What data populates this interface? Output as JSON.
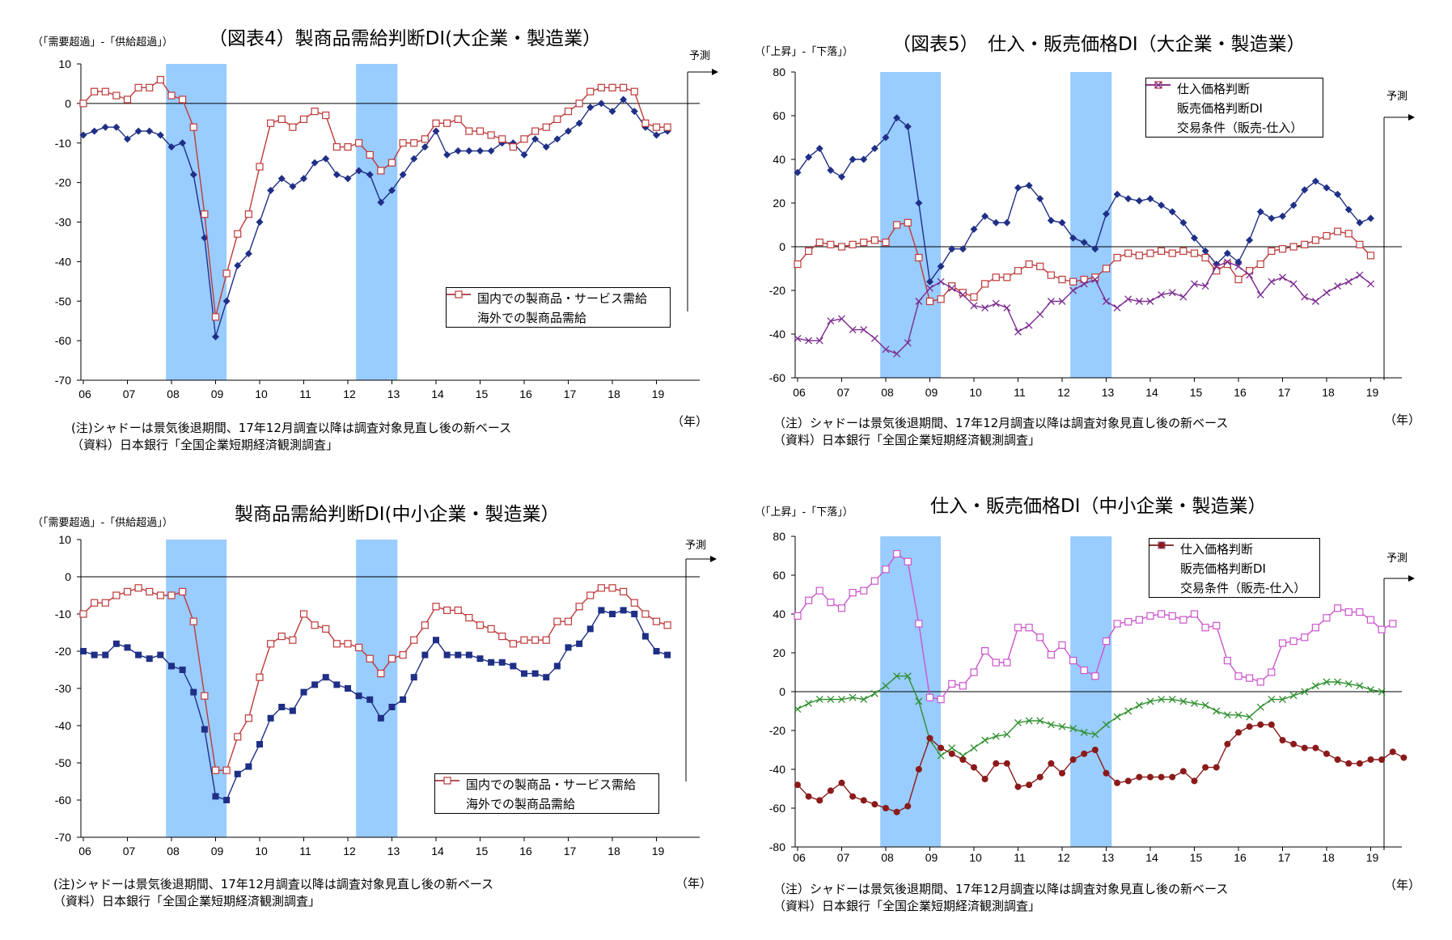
{
  "colors": {
    "shade": "#99CCFF",
    "navy": "#1F2F86",
    "red": "#BE3A3A",
    "purple": "#7B2B8F",
    "magenta": "#CC55CC",
    "green": "#2F8F2F",
    "darkred": "#8B1A1A",
    "zero": "#000000"
  },
  "panels": [
    {
      "title": "（図表4）製商品需給判断DI(大企業・製造業）",
      "unit": "（「需要超過」-「供給超過」）",
      "forecast": "予測",
      "year_label": "（年）",
      "note1": "(注)シャドーは景気後退期間、17年12月調査以降は調査対象見直し後の新ベース",
      "note2": "（資料）日本銀行「全国企業短期経済観測調査」"
    },
    {
      "title": "（図表5）　仕入・販売価格DI（大企業・製造業）",
      "unit": "（「上昇」-「下落」）",
      "forecast": "予測",
      "year_label": "（年）",
      "note1": "（注）シャドーは景気後退期間、17年12月調査以降は調査対象見直し後の新ベース",
      "note2": "（資料）日本銀行「全国企業短期経済観測調査」"
    },
    {
      "title": "製商品需給判断DI(中小企業・製造業）",
      "unit": "（「需要超過」-「供給超過」）",
      "forecast": "予測",
      "year_label": "（年）",
      "note1": "(注)シャドーは景気後退期間、17年12月調査以降は調査対象見直し後の新ベース",
      "note2": "（資料）日本銀行「全国企業短期経済観測調査」"
    },
    {
      "title": "仕入・販売価格DI（中小企業・製造業）",
      "unit": "（「上昇」-「下落」）",
      "forecast": "予測",
      "year_label": "（年）",
      "note1": "（注）シャドーは景気後退期間、17年12月調査以降は調査対象見直し後の新ベース",
      "note2": "（資料）日本銀行「全国企業短期経済観測調査」"
    }
  ],
  "chart_data": [
    {
      "type": "line",
      "x_labels": [
        "06",
        "07",
        "08",
        "09",
        "10",
        "11",
        "12",
        "13",
        "14",
        "15",
        "16",
        "17",
        "18",
        "19"
      ],
      "ylim": [
        -70,
        10
      ],
      "yticks": [
        10,
        0,
        -10,
        -20,
        -30,
        -40,
        -50,
        -60,
        -70
      ],
      "recession_shading": [
        [
          7.5,
          13.0
        ],
        [
          24.75,
          28.5
        ]
      ],
      "legend_position": "lower-right",
      "series": [
        {
          "name": "国内での製商品・サービス需給",
          "color": "navy",
          "marker": "diamond",
          "values": [
            -8,
            -7,
            -6,
            -6,
            -9,
            -7,
            -7,
            -8,
            -11,
            -10,
            -18,
            -34,
            -59,
            -50,
            -41,
            -38,
            -30,
            -22,
            -19,
            -21,
            -19,
            -15,
            -14,
            -18,
            -19,
            -17,
            -18,
            -25,
            -22,
            -18,
            -14,
            -11,
            -7,
            -13,
            -12,
            -12,
            -12,
            -12,
            -10,
            -10,
            -13,
            -9,
            -11,
            -9,
            -7,
            -5,
            -1,
            0,
            -2,
            1,
            -2,
            -6,
            -8,
            -7
          ]
        },
        {
          "name": "海外での製商品需給",
          "color": "red",
          "marker": "square",
          "values": [
            0,
            3,
            3,
            2,
            1,
            4,
            4,
            6,
            2,
            1,
            -6,
            -28,
            -54,
            -43,
            -33,
            -28,
            -16,
            -5,
            -4,
            -6,
            -4,
            -2,
            -3,
            -11,
            -11,
            -10,
            -13,
            -17,
            -15,
            -10,
            -10,
            -9,
            -5,
            -5,
            -4,
            -7,
            -7,
            -8,
            -9,
            -11,
            -9,
            -7,
            -6,
            -4,
            -2,
            0,
            3,
            4,
            4,
            4,
            3,
            -5,
            -6,
            -6
          ]
        }
      ]
    },
    {
      "type": "line",
      "x_labels": [
        "06",
        "07",
        "08",
        "09",
        "10",
        "11",
        "12",
        "13",
        "14",
        "15",
        "16",
        "17",
        "18",
        "19"
      ],
      "ylim": [
        -60,
        80
      ],
      "yticks": [
        80,
        60,
        40,
        20,
        0,
        -20,
        -40,
        -60
      ],
      "recession_shading": [
        [
          7.5,
          13.0
        ],
        [
          24.75,
          28.5
        ]
      ],
      "legend_position": "top-right",
      "series": [
        {
          "name": "仕入価格判断",
          "color": "navy",
          "marker": "diamond",
          "values": [
            34,
            41,
            45,
            35,
            32,
            40,
            40,
            45,
            50,
            59,
            55,
            20,
            -16,
            -9,
            -1,
            -1,
            8,
            14,
            11,
            11,
            27,
            28,
            22,
            12,
            11,
            4,
            2,
            -1,
            15,
            24,
            22,
            21,
            22,
            19,
            16,
            11,
            4,
            -2,
            -8,
            -3,
            -7,
            3,
            16,
            13,
            14,
            19,
            26,
            30,
            27,
            24,
            17,
            11,
            13
          ]
        },
        {
          "name": "販売価格判断DI",
          "color": "red",
          "marker": "square",
          "values": [
            -8,
            -2,
            2,
            1,
            0,
            1,
            2,
            3,
            2,
            10,
            11,
            -5,
            -25,
            -24,
            -18,
            -21,
            -23,
            -17,
            -14,
            -14,
            -11,
            -8,
            -9,
            -13,
            -15,
            -16,
            -15,
            -14,
            -10,
            -5,
            -3,
            -4,
            -3,
            -2,
            -3,
            -2,
            -3,
            -5,
            -11,
            -8,
            -15,
            -11,
            -8,
            -2,
            -1,
            0,
            1,
            3,
            5,
            7,
            6,
            1,
            -4
          ]
        },
        {
          "name": "交易条件（販売-仕入）",
          "color": "purple",
          "marker": "x",
          "values": [
            -42,
            -43,
            -43,
            -34,
            -33,
            -38,
            -38,
            -42,
            -47,
            -49,
            -44,
            -25,
            -19,
            -16,
            -19,
            -22,
            -27,
            -28,
            -26,
            -28,
            -39,
            -36,
            -31,
            -25,
            -25,
            -20,
            -17,
            -15,
            -25,
            -28,
            -24,
            -25,
            -25,
            -22,
            -21,
            -23,
            -17,
            -18,
            -9,
            -7,
            -9,
            -13,
            -22,
            -16,
            -14,
            -17,
            -23,
            -25,
            -21,
            -18,
            -16,
            -13,
            -17
          ]
        }
      ]
    },
    {
      "type": "line",
      "x_labels": [
        "06",
        "07",
        "08",
        "09",
        "10",
        "11",
        "12",
        "13",
        "14",
        "15",
        "16",
        "17",
        "18",
        "19"
      ],
      "ylim": [
        -70,
        10
      ],
      "yticks": [
        10,
        0,
        -10,
        -20,
        -30,
        -40,
        -50,
        -60,
        -70
      ],
      "recession_shading": [
        [
          7.5,
          13.0
        ],
        [
          24.75,
          28.5
        ]
      ],
      "legend_position": "lower-right",
      "series": [
        {
          "name": "国内での製商品・サービス需給",
          "color": "navy",
          "marker": "square",
          "values": [
            -20,
            -21,
            -21,
            -18,
            -19,
            -21,
            -22,
            -21,
            -24,
            -25,
            -31,
            -41,
            -59,
            -60,
            -53,
            -51,
            -45,
            -38,
            -35,
            -36,
            -31,
            -29,
            -27,
            -29,
            -30,
            -32,
            -33,
            -38,
            -35,
            -33,
            -27,
            -21,
            -17,
            -21,
            -21,
            -21,
            -22,
            -23,
            -23,
            -24,
            -26,
            -26,
            -27,
            -24,
            -19,
            -18,
            -14,
            -9,
            -10,
            -9,
            -10,
            -16,
            -20,
            -21
          ]
        },
        {
          "name": "海外での製商品需給",
          "color": "red",
          "marker": "square",
          "values": [
            -10,
            -7,
            -7,
            -5,
            -4,
            -3,
            -4,
            -5,
            -5,
            -4,
            -12,
            -32,
            -52,
            -52,
            -43,
            -38,
            -27,
            -18,
            -16,
            -17,
            -10,
            -13,
            -14,
            -18,
            -18,
            -19,
            -22,
            -26,
            -22,
            -21,
            -17,
            -13,
            -8,
            -9,
            -9,
            -11,
            -13,
            -14,
            -16,
            -18,
            -17,
            -17,
            -17,
            -12,
            -12,
            -8,
            -5,
            -3,
            -3,
            -4,
            -7,
            -10,
            -12,
            -13
          ]
        }
      ]
    },
    {
      "type": "line",
      "x_labels": [
        "06",
        "07",
        "08",
        "09",
        "10",
        "11",
        "12",
        "13",
        "14",
        "15",
        "16",
        "17",
        "18",
        "19"
      ],
      "ylim": [
        -80,
        80
      ],
      "yticks": [
        80,
        60,
        40,
        20,
        0,
        -20,
        -40,
        -60,
        -80
      ],
      "recession_shading": [
        [
          7.5,
          13.0
        ],
        [
          24.75,
          28.5
        ]
      ],
      "legend_position": "top-right",
      "series": [
        {
          "name": "仕入価格判断",
          "color": "magenta",
          "marker": "square",
          "values": [
            39,
            47,
            52,
            46,
            43,
            51,
            52,
            57,
            63,
            71,
            67,
            35,
            -3,
            -4,
            4,
            3,
            10,
            21,
            15,
            15,
            33,
            33,
            28,
            19,
            24,
            16,
            11,
            8,
            26,
            35,
            36,
            37,
            39,
            40,
            39,
            37,
            40,
            33,
            34,
            16,
            8,
            7,
            5,
            10,
            25,
            26,
            28,
            33,
            38,
            43,
            41,
            41,
            37,
            32,
            35
          ]
        },
        {
          "name": "販売価格判断DI",
          "color": "green",
          "marker": "x",
          "values": [
            -9,
            -6,
            -4,
            -4,
            -4,
            -3,
            -4,
            -1,
            3,
            8,
            8,
            -5,
            -25,
            -33,
            -29,
            -33,
            -29,
            -25,
            -23,
            -22,
            -16,
            -15,
            -15,
            -17,
            -18,
            -19,
            -21,
            -22,
            -17,
            -13,
            -10,
            -7,
            -5,
            -4,
            -4,
            -5,
            -6,
            -7,
            -10,
            -12,
            -12,
            -13,
            -8,
            -4,
            -4,
            -2,
            0,
            3,
            5,
            5,
            4,
            3,
            1,
            0
          ]
        },
        {
          "name": "交易条件（販売-仕入）",
          "color": "darkred",
          "marker": "circle",
          "values": [
            -48,
            -54,
            -56,
            -51,
            -47,
            -54,
            -56,
            -58,
            -60,
            -62,
            -59,
            -40,
            -24,
            -29,
            -32,
            -35,
            -39,
            -45,
            -37,
            -37,
            -49,
            -48,
            -44,
            -37,
            -42,
            -35,
            -32,
            -30,
            -42,
            -47,
            -46,
            -44,
            -44,
            -44,
            -44,
            -41,
            -46,
            -39,
            -39,
            -27,
            -21,
            -18,
            -17,
            -17,
            -25,
            -27,
            -29,
            -29,
            -32,
            -35,
            -37,
            -37,
            -35,
            -35,
            -31,
            -34
          ]
        }
      ]
    }
  ]
}
